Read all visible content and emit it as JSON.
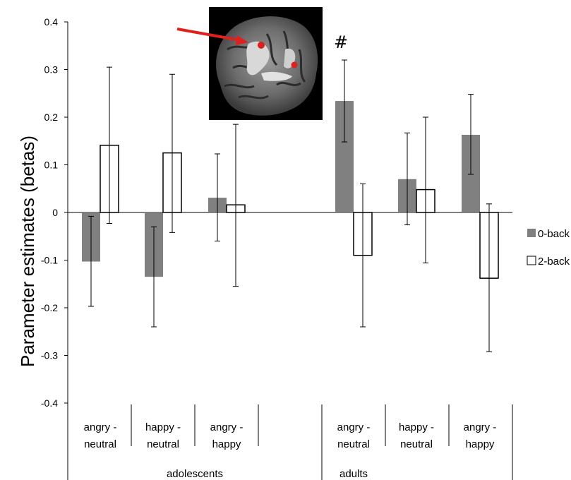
{
  "chart_data": {
    "type": "bar",
    "ylabel": "Parameter estimates (betas)",
    "ylim": [
      -0.4,
      0.4
    ],
    "yticks": [
      "0.4",
      "0.3",
      "0.2",
      "0.1",
      "0",
      "-0.1",
      "-0.2",
      "-0.3",
      "-0.4"
    ],
    "categories": [
      {
        "line1": "angry -",
        "line2": "neutral",
        "group": "adolescents"
      },
      {
        "line1": "happy -",
        "line2": "neutral",
        "group": "adolescents"
      },
      {
        "line1": "angry -",
        "line2": "happy",
        "group": "adolescents"
      },
      {
        "line1": "angry -",
        "line2": "neutral",
        "group": "adults"
      },
      {
        "line1": "happy -",
        "line2": "neutral",
        "group": "adults"
      },
      {
        "line1": "angry -",
        "line2": "happy",
        "group": "adults"
      }
    ],
    "groups": [
      "adolescents",
      "adults"
    ],
    "series": [
      {
        "name": "0-back",
        "color": "#808080",
        "values": [
          -0.103,
          -0.135,
          0.031,
          0.234,
          0.07,
          0.163
        ],
        "error_low": [
          -0.197,
          -0.24,
          -0.06,
          0.148,
          -0.026,
          0.08
        ],
        "error_high": [
          -0.008,
          -0.03,
          0.123,
          0.32,
          0.167,
          0.248
        ]
      },
      {
        "name": "2-back",
        "color": "#ffffff",
        "values": [
          0.141,
          0.125,
          0.016,
          -0.09,
          0.048,
          -0.138
        ],
        "error_low": [
          -0.023,
          -0.042,
          -0.155,
          -0.24,
          -0.106,
          -0.292
        ],
        "error_high": [
          0.305,
          0.29,
          0.185,
          0.06,
          0.2,
          0.018
        ]
      }
    ],
    "annotations": [
      {
        "text": "#",
        "category_index": 3
      }
    ],
    "legend_position": "right",
    "grid": false,
    "inset_image": "brain-render"
  }
}
